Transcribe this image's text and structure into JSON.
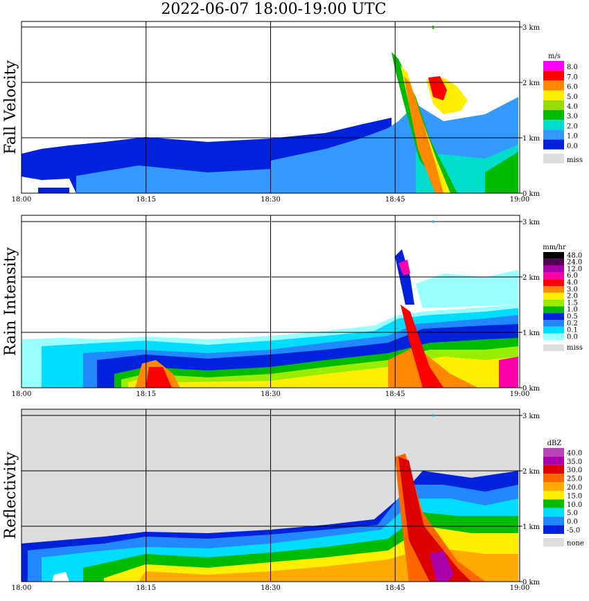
{
  "title": "2022-06-07   18:00-19:00 UTC",
  "x_tick_labels": [
    "18:00",
    "18:15",
    "18:30",
    "18:45",
    "19:00"
  ],
  "height_labels": [
    "0 km",
    "1 km",
    "2 km",
    "3 km"
  ],
  "panels": [
    {
      "name": "fall-velocity",
      "label": "Fall Velocity",
      "unit": "m/s",
      "background": "#ffffff",
      "legend": [
        {
          "label": "8.0",
          "color": "#ff00ff"
        },
        {
          "label": "7.0",
          "color": "#ff0000"
        },
        {
          "label": "6.0",
          "color": "#ff8800"
        },
        {
          "label": "5.0",
          "color": "#ffee00"
        },
        {
          "label": "4.0",
          "color": "#99dd00"
        },
        {
          "label": "3.0",
          "color": "#00bb00"
        },
        {
          "label": "2.0",
          "color": "#00ddcc"
        },
        {
          "label": "1.0",
          "color": "#3399ff"
        },
        {
          "label": "0.0",
          "color": "#0022dd"
        },
        {
          "label": "miss",
          "color": "#dddddd"
        }
      ]
    },
    {
      "name": "rain-intensity",
      "label": "Rain Intensity",
      "unit": "mm/hr",
      "background": "#ffffff",
      "legend": [
        {
          "label": "48.0",
          "color": "#000000"
        },
        {
          "label": "24.0",
          "color": "#550055"
        },
        {
          "label": "12.0",
          "color": "#aa00aa"
        },
        {
          "label": "6.0",
          "color": "#ff00aa"
        },
        {
          "label": "4.0",
          "color": "#ff0000"
        },
        {
          "label": "3.0",
          "color": "#ff8800"
        },
        {
          "label": "2.0",
          "color": "#ffee00"
        },
        {
          "label": "1.5",
          "color": "#99ee00"
        },
        {
          "label": "1.0",
          "color": "#00bb00"
        },
        {
          "label": "0.5",
          "color": "#0022dd"
        },
        {
          "label": "0.2",
          "color": "#2288ff"
        },
        {
          "label": "0.1",
          "color": "#00ddff"
        },
        {
          "label": "0.0",
          "color": "#99ffff"
        },
        {
          "label": "miss",
          "color": "#dddddd"
        }
      ]
    },
    {
      "name": "reflectivity",
      "label": "Reflectivity",
      "unit": "dBZ",
      "background": "#dddddd",
      "legend": [
        {
          "label": "40.0",
          "color": "#bb44bb"
        },
        {
          "label": "35.0",
          "color": "#aa00aa"
        },
        {
          "label": "30.0",
          "color": "#dd0000"
        },
        {
          "label": "25.0",
          "color": "#ff6600"
        },
        {
          "label": "20.0",
          "color": "#ffaa00"
        },
        {
          "label": "15.0",
          "color": "#ffee00"
        },
        {
          "label": "10.0",
          "color": "#00bb00"
        },
        {
          "label": "5.0",
          "color": "#00ddff"
        },
        {
          "label": "0.0",
          "color": "#2288ff"
        },
        {
          "label": "-5.0",
          "color": "#0022dd"
        },
        {
          "label": "none",
          "color": "#dddddd"
        }
      ]
    }
  ],
  "chart_data": {
    "type": "heatmap",
    "title": "2022-06-07   18:00-19:00 UTC",
    "x_range": [
      "18:00",
      "19:00"
    ],
    "y_range_km": [
      0,
      3.2
    ],
    "grid": true,
    "series": [
      {
        "name": "Fall Velocity",
        "unit": "m/s",
        "bands": [
          {
            "x": [
              0,
              45
            ],
            "top_km": [
              0.9,
              1.1
            ],
            "value": 1.0
          },
          {
            "x": [
              45,
              60
            ],
            "top_km": [
              2.5,
              2.2
            ],
            "value": 2.0
          },
          {
            "x": [
              46,
              52
            ],
            "top_km": [
              2.0,
              0.2
            ],
            "value": 6.0
          },
          {
            "x": [
              50,
              55
            ],
            "top_km": [
              2.0,
              1.4
            ],
            "value": 6.0
          }
        ]
      },
      {
        "name": "Rain Intensity",
        "unit": "mm/hr",
        "bands": [
          {
            "x": [
              0,
              60
            ],
            "top_km": [
              0.9,
              1.2
            ],
            "value": 0.5
          },
          {
            "x": [
              8,
              60
            ],
            "top_km": [
              0.5,
              0.6
            ],
            "value": 2.0
          },
          {
            "x": [
              46,
              50
            ],
            "top_km": [
              2.2,
              0.0
            ],
            "value": 6.0
          },
          {
            "x": [
              13,
              16
            ],
            "top_km": [
              0.4,
              0.0
            ],
            "value": 4.0
          }
        ]
      },
      {
        "name": "Reflectivity",
        "unit": "dBZ",
        "bands": [
          {
            "x": [
              0,
              60
            ],
            "top_km": [
              1.0,
              1.2
            ],
            "value": 0.0
          },
          {
            "x": [
              8,
              60
            ],
            "top_km": [
              0.7,
              0.9
            ],
            "value": 15.0
          },
          {
            "x": [
              46,
              50
            ],
            "top_km": [
              2.2,
              0.0
            ],
            "value": 30.0
          },
          {
            "x": [
              50,
              58
            ],
            "top_km": [
              0.5,
              0.0
            ],
            "value": 35.0
          }
        ]
      }
    ]
  }
}
